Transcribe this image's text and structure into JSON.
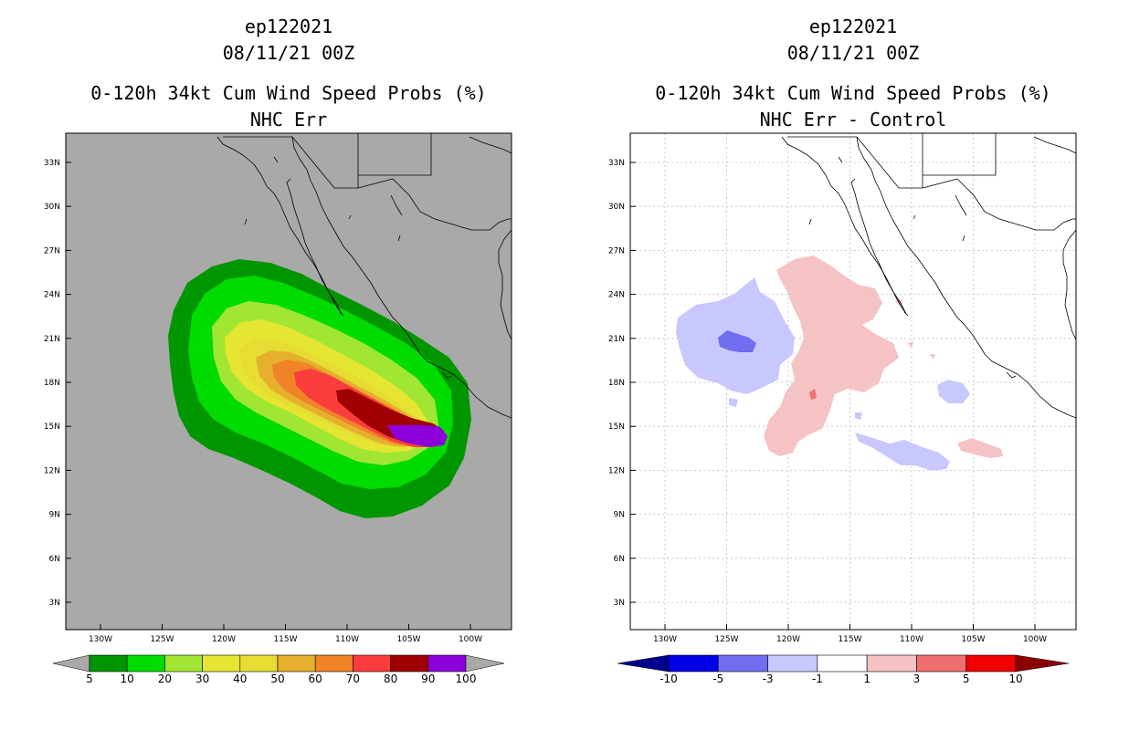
{
  "left": {
    "storm_id": "ep122021",
    "datetime": "08/11/21 00Z",
    "title": "0-120h 34kt Cum Wind Speed Probs (%)",
    "subtitle": "NHC Err",
    "background": "#a9a9a9",
    "lat_ticks": [
      "33N",
      "30N",
      "27N",
      "24N",
      "21N",
      "18N",
      "15N",
      "12N",
      "9N",
      "6N",
      "3N"
    ],
    "lon_ticks": [
      "130W",
      "125W",
      "120W",
      "115W",
      "110W",
      "105W",
      "100W"
    ],
    "colorbar": {
      "colors": [
        "#009600",
        "#00dc00",
        "#a0e632",
        "#e6e632",
        "#e6dc32",
        "#e6af2d",
        "#f08228",
        "#fa3c3c",
        "#a00000",
        "#8c00dc"
      ],
      "labels": [
        "5",
        "10",
        "20",
        "30",
        "40",
        "50",
        "60",
        "70",
        "80",
        "90",
        "100"
      ],
      "end_color": "#a9a9a9"
    }
  },
  "right": {
    "storm_id": "ep122021",
    "datetime": "08/11/21 00Z",
    "title": "0-120h 34kt Cum Wind Speed Probs (%)",
    "subtitle": "NHC Err - Control",
    "background": "#ffffff",
    "lat_ticks": [
      "33N",
      "30N",
      "27N",
      "24N",
      "21N",
      "18N",
      "15N",
      "12N",
      "9N",
      "6N",
      "3N"
    ],
    "lon_ticks": [
      "130W",
      "125W",
      "120W",
      "115W",
      "110W",
      "105W",
      "100W"
    ],
    "colorbar": {
      "colors": [
        "#0000e6",
        "#6e6eef",
        "#c8c8ff",
        "#ffffff",
        "#f5c3c3",
        "#f06e6e",
        "#f00000"
      ],
      "labels": [
        "-10",
        "-5",
        "-3",
        "-1",
        "1",
        "3",
        "5",
        "10"
      ],
      "low_end_color": "#00008c",
      "high_end_color": "#8c0000"
    }
  }
}
